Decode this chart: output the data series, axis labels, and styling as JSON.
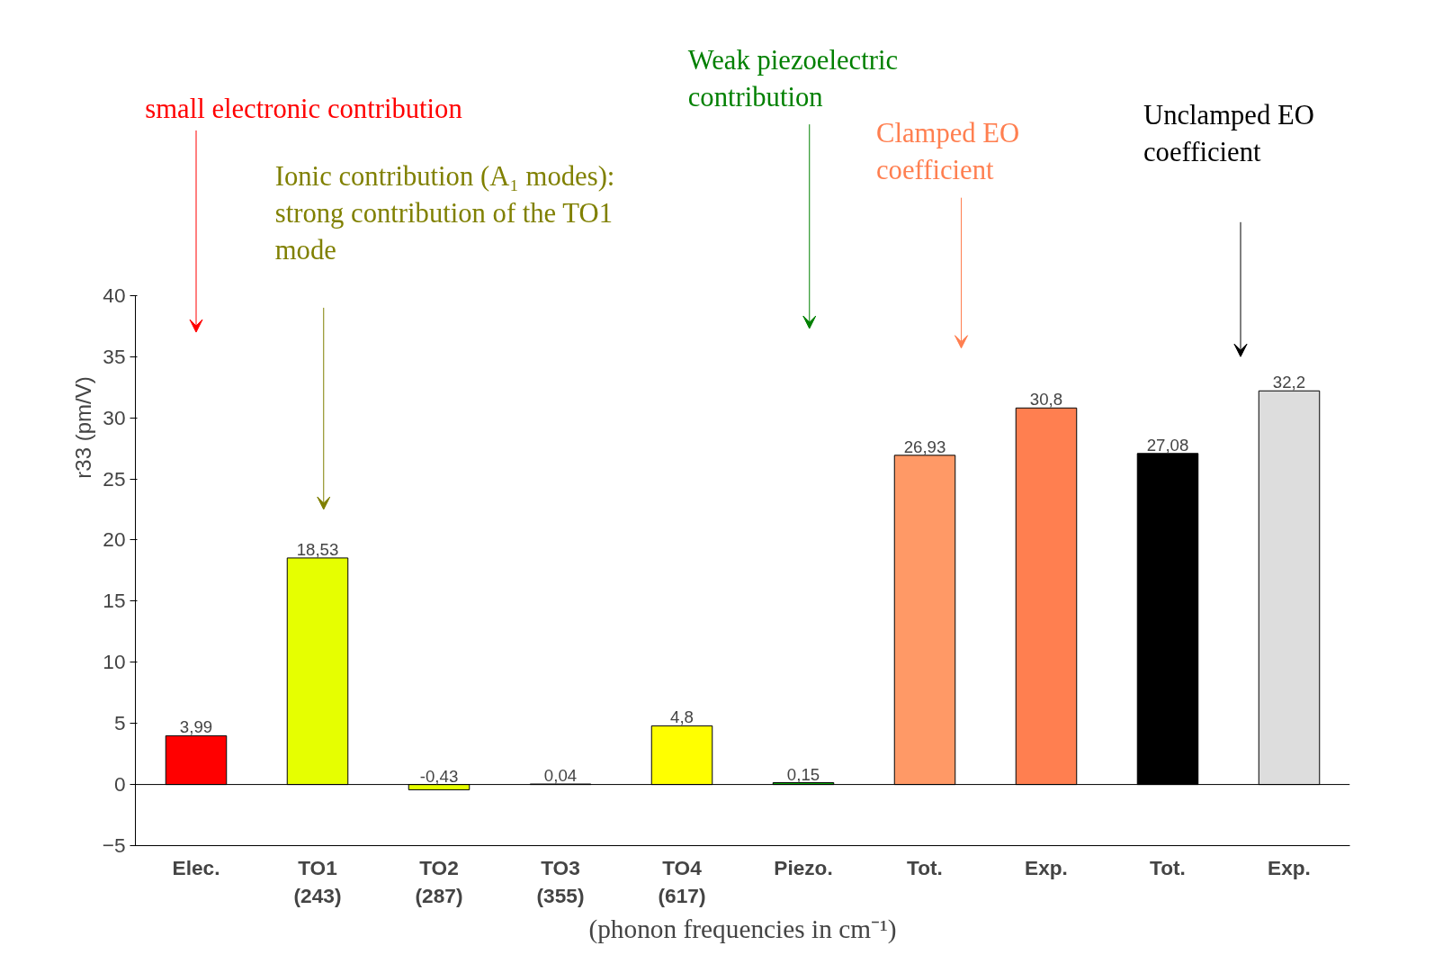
{
  "chart_data": {
    "type": "bar",
    "ylabel": "r33 (pm/V)",
    "xlabel": "(phonon frequencies in cm⁻¹)",
    "categories": [
      "Elec.",
      "TO1 (243)",
      "TO2 (287)",
      "TO3 (355)",
      "TO4 (617)",
      "Piezo.",
      "Tot.",
      "Exp.",
      "Tot.",
      "Exp."
    ],
    "values": [
      3.99,
      18.53,
      -0.43,
      0.04,
      4.8,
      0.15,
      26.93,
      30.8,
      27.08,
      32.2
    ],
    "colors": [
      "#ff0000",
      "#e6ff00",
      "#e6ff00",
      "#33cc33",
      "#ffff00",
      "#00aa00",
      "#ff9966",
      "#ff7f50",
      "#000000",
      "#dddddd"
    ],
    "value_labels": [
      "3,99",
      "18,53",
      "-0,43",
      "0,04",
      "4,8",
      "0,15",
      "26,93",
      "30,8",
      "27,08",
      "32,2"
    ],
    "ylim": [
      -5,
      40
    ],
    "yticks": [
      -5,
      0,
      5,
      10,
      15,
      20,
      25,
      30,
      35,
      40
    ],
    "grid": false,
    "ref_lines": [
      {
        "axis": "y",
        "value": 0,
        "color": "#000000"
      }
    ],
    "annotations": [
      "small electronic contribution",
      "Ionic contribution (A₁ modes): strong contribution of the TO1 mode",
      "Weak piezoelectric contribution",
      "Clamped EO coefficient",
      "Unclamped EO coefficient"
    ]
  }
}
